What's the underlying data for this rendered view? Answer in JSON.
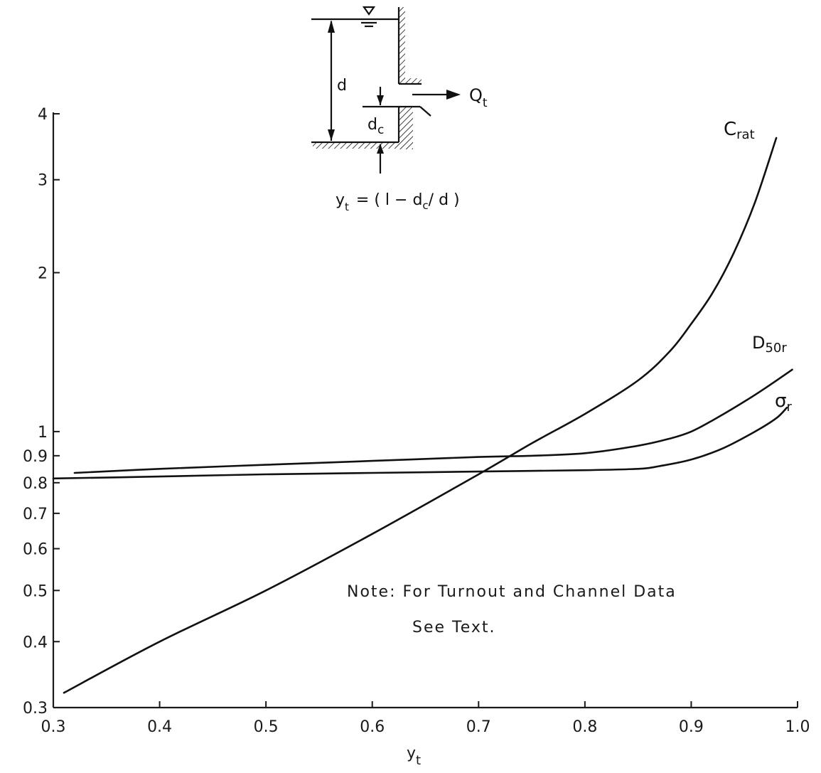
{
  "chart_data": {
    "type": "line",
    "title": "",
    "xlabel": "y",
    "xlabel_sub": "t",
    "ylabel": "",
    "x_scale": "linear",
    "y_scale": "log",
    "xlim": [
      0.3,
      1.0
    ],
    "ylim": [
      0.3,
      4
    ],
    "grid": false,
    "x_ticks": [
      0.3,
      0.4,
      0.5,
      0.6,
      0.7,
      0.8,
      0.9,
      1.0
    ],
    "x_tick_labels": [
      "0.3",
      "0.4",
      "0.5",
      "0.6",
      "0.7",
      "0.8",
      "0.9",
      "1.0"
    ],
    "y_ticks": [
      0.3,
      0.4,
      0.5,
      0.6,
      0.7,
      0.8,
      0.9,
      1,
      2,
      3,
      4
    ],
    "y_tick_labels": [
      "0.3",
      "0.4",
      "0.5",
      "0.6",
      "0.7",
      "0.8",
      "0.9",
      "1",
      "2",
      "3",
      "4"
    ],
    "series": [
      {
        "name": "Crat",
        "label_main": "C",
        "label_sub": "rat",
        "x": [
          0.31,
          0.4,
          0.5,
          0.6,
          0.7,
          0.75,
          0.8,
          0.85,
          0.88,
          0.9,
          0.92,
          0.94,
          0.96,
          0.98
        ],
        "y": [
          0.32,
          0.4,
          0.5,
          0.64,
          0.83,
          0.95,
          1.08,
          1.25,
          1.42,
          1.6,
          1.83,
          2.18,
          2.72,
          3.6
        ]
      },
      {
        "name": "D50r",
        "label_main": "D",
        "label_sub": "50r",
        "x": [
          0.32,
          0.4,
          0.5,
          0.6,
          0.7,
          0.75,
          0.8,
          0.85,
          0.88,
          0.9,
          0.92,
          0.95,
          0.97,
          0.995
        ],
        "y": [
          0.835,
          0.85,
          0.865,
          0.88,
          0.895,
          0.9,
          0.91,
          0.94,
          0.97,
          1.0,
          1.05,
          1.14,
          1.21,
          1.31
        ]
      },
      {
        "name": "σr",
        "label_main": "σ",
        "label_sub": "r",
        "x": [
          0.3,
          0.4,
          0.5,
          0.6,
          0.7,
          0.8,
          0.85,
          0.87,
          0.9,
          0.93,
          0.96,
          0.98,
          0.99
        ],
        "y": [
          0.815,
          0.822,
          0.83,
          0.835,
          0.84,
          0.845,
          0.85,
          0.86,
          0.885,
          0.93,
          1.0,
          1.06,
          1.11
        ]
      }
    ],
    "annotations": [
      "Note: For Turnout and Channel Data",
      "See Text."
    ]
  },
  "sketch": {
    "depth_label": "d",
    "crest_label_main": "d",
    "crest_label_sub": "c",
    "flow_label_main": "Q",
    "flow_label_sub": "t",
    "formula_main": "y",
    "formula_sub": "t",
    "formula_rest": "= ( l − d",
    "formula_sub2": "c",
    "formula_end": "/ d )"
  }
}
